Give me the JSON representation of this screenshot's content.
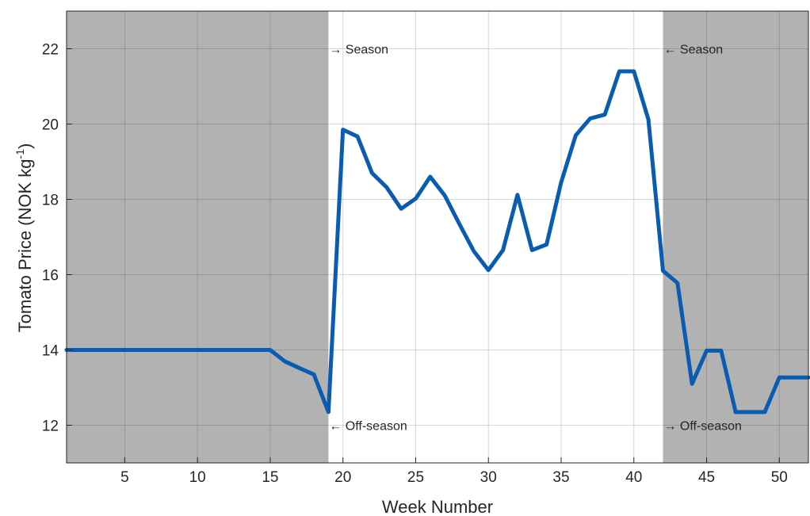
{
  "chart_data": {
    "type": "line",
    "title": "",
    "xlabel": "Week Number",
    "ylabel_main": "Tomato Price (NOK kg",
    "ylabel_sup": "-1",
    "ylabel_end": ")",
    "xlim": [
      1,
      52
    ],
    "ylim": [
      11,
      23
    ],
    "xticks": [
      5,
      10,
      15,
      20,
      25,
      30,
      35,
      40,
      45,
      50
    ],
    "yticks": [
      12,
      14,
      16,
      18,
      20,
      22
    ],
    "grid": true,
    "shaded_regions": [
      {
        "x0": 1,
        "x1": 19,
        "color": "#b2b2b2"
      },
      {
        "x0": 42,
        "x1": 52,
        "color": "#b2b2b2"
      }
    ],
    "series": [
      {
        "color": "#0a5cb0",
        "x": [
          1,
          15,
          16,
          17,
          18,
          19,
          20,
          21,
          22,
          23,
          24,
          25,
          26,
          27,
          28,
          29,
          30,
          31,
          32,
          33,
          34,
          35,
          36,
          37,
          38,
          39,
          40,
          41,
          42,
          43,
          44,
          45,
          46,
          47,
          48,
          49,
          50,
          51,
          52
        ],
        "y": [
          14.0,
          14.0,
          13.7,
          13.52,
          13.35,
          12.35,
          19.85,
          19.67,
          18.7,
          18.32,
          17.75,
          18.02,
          18.6,
          18.1,
          17.35,
          16.62,
          16.12,
          16.65,
          18.12,
          16.65,
          16.8,
          18.45,
          19.7,
          20.15,
          20.25,
          21.4,
          21.4,
          20.12,
          16.1,
          15.78,
          13.1,
          13.98,
          13.98,
          12.35,
          12.35,
          12.35,
          13.27,
          13.27,
          13.27
        ]
      }
    ],
    "annotations": [
      {
        "text": "→ Season",
        "x": 19,
        "y": 22
      },
      {
        "text": "← Season",
        "x": 42,
        "y": 22
      },
      {
        "text": "← Off-season",
        "x": 19,
        "y": 12
      },
      {
        "text": "→ Off-season",
        "x": 42,
        "y": 12
      }
    ]
  }
}
